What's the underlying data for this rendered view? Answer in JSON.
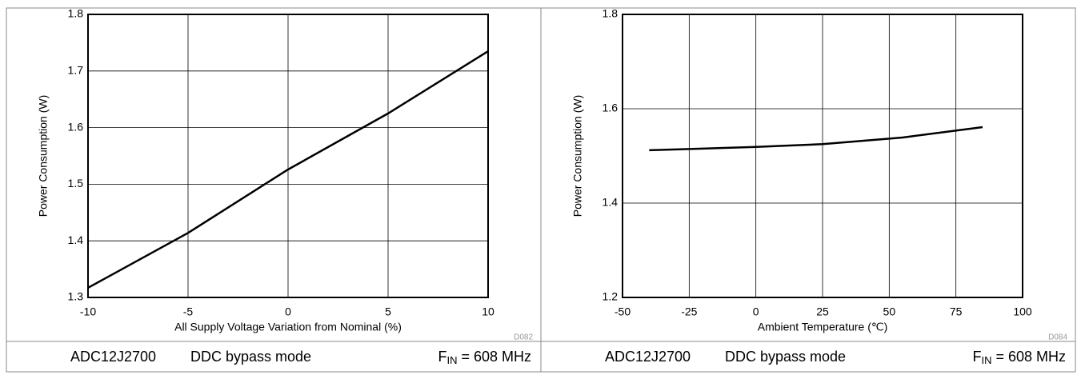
{
  "chart_data": [
    {
      "type": "line",
      "x": [
        -10,
        -5,
        0,
        5,
        10
      ],
      "values": [
        1.317,
        1.414,
        1.526,
        1.625,
        1.735
      ],
      "color": "#000000",
      "xlim": [
        -10,
        10
      ],
      "xticks": [
        -10,
        -5,
        0,
        5,
        10
      ],
      "ylim": [
        1.3,
        1.8
      ],
      "yticks": [
        1.3,
        1.4,
        1.5,
        1.6,
        1.7,
        1.8
      ],
      "grid": true,
      "x_label": "All Supply Voltage Variation from Nominal (%)",
      "y_label": "Power Consumption (W)",
      "figure_id": "D082",
      "footer": {
        "device": "ADC12J2700",
        "mode": "DDC bypass mode",
        "fin_symbol": "F",
        "fin_subscript": "IN",
        "fin_value": " = 608 MHz"
      }
    },
    {
      "type": "line",
      "x": [
        -40,
        0,
        25,
        55,
        85
      ],
      "values": [
        1.512,
        1.519,
        1.525,
        1.539,
        1.561
      ],
      "color": "#000000",
      "xlim": [
        -50,
        100
      ],
      "xticks": [
        -50,
        -25,
        0,
        25,
        50,
        75,
        100
      ],
      "ylim": [
        1.2,
        1.8
      ],
      "yticks": [
        1.2,
        1.4,
        1.6,
        1.8
      ],
      "grid": true,
      "x_label": "Ambient Temperature (℃)",
      "y_label": "Power Consumption (W)",
      "figure_id": "D084",
      "footer": {
        "device": "ADC12J2700",
        "mode": "DDC bypass mode",
        "fin_symbol": "F",
        "fin_subscript": "IN",
        "fin_value": " = 608 MHz"
      }
    }
  ]
}
